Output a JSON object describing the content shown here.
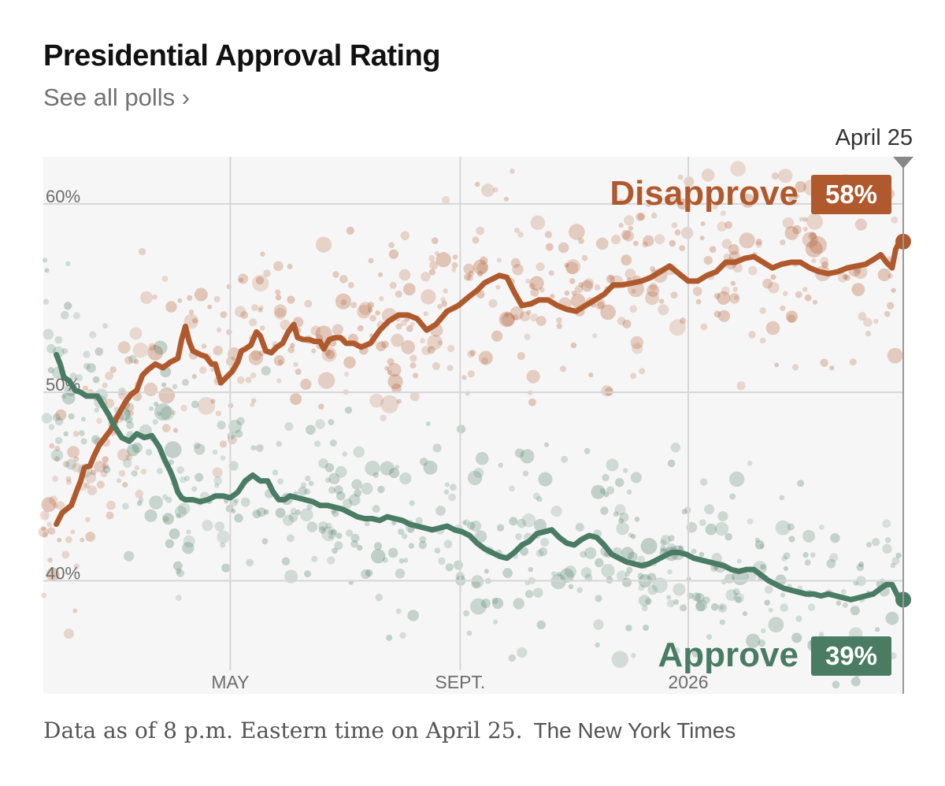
{
  "header": {
    "title": "Presidential Approval Rating",
    "see_all_link": "See all polls ›"
  },
  "footer": {
    "note": "Data as of 8 p.m. Eastern time on April 25.",
    "source": "The New York Times"
  },
  "colors": {
    "disapprove": "#b0592d",
    "approve": "#4a7c63",
    "plot_bg": "#f6f6f6",
    "grid": "#d6d6d6"
  },
  "chart_data": {
    "type": "line",
    "title": "Presidential Approval Rating",
    "ylabel": "",
    "xlabel": "",
    "ylim": [
      34,
      62.5
    ],
    "xlim": [
      0,
      460
    ],
    "y_ticks": [
      {
        "value": 60,
        "label": "60%"
      },
      {
        "value": 50,
        "label": "50%"
      },
      {
        "value": 40,
        "label": "40%"
      }
    ],
    "x_ticks": [
      {
        "x": 100,
        "label": "MAY"
      },
      {
        "x": 223,
        "label": "SEPT."
      },
      {
        "x": 345,
        "label": "2026"
      }
    ],
    "current_marker": {
      "x": 460,
      "label": "April 25"
    },
    "x_unit": "days since start of term (Jan. 20)",
    "series": [
      {
        "name": "Disapprove",
        "label": "Disapprove",
        "end_value_label": "58%",
        "color": "#b0592d",
        "points": [
          [
            7,
            43
          ],
          [
            10,
            43.6
          ],
          [
            15,
            44
          ],
          [
            18,
            44.8
          ],
          [
            20,
            45.3
          ],
          [
            22,
            46
          ],
          [
            25,
            46.1
          ],
          [
            27,
            46.6
          ],
          [
            30,
            47.2
          ],
          [
            33,
            47.6
          ],
          [
            36,
            48
          ],
          [
            40,
            48.8
          ],
          [
            44,
            49.5
          ],
          [
            47,
            49.9
          ],
          [
            50,
            50.1
          ],
          [
            53,
            50.9
          ],
          [
            56,
            51.2
          ],
          [
            60,
            51.5
          ],
          [
            64,
            51.3
          ],
          [
            68,
            51.6
          ],
          [
            72,
            51.8
          ],
          [
            74,
            52.8
          ],
          [
            76,
            53.5
          ],
          [
            78,
            52.7
          ],
          [
            80,
            52.2
          ],
          [
            84,
            52
          ],
          [
            87,
            51.9
          ],
          [
            90,
            51.5
          ],
          [
            92,
            51.5
          ],
          [
            95,
            50.5
          ],
          [
            98,
            50.8
          ],
          [
            101,
            51.1
          ],
          [
            104,
            51.6
          ],
          [
            106,
            52.2
          ],
          [
            108,
            52.3
          ],
          [
            111,
            52.5
          ],
          [
            114,
            53.2
          ],
          [
            116,
            53
          ],
          [
            119,
            52.2
          ],
          [
            122,
            52.1
          ],
          [
            125,
            52.4
          ],
          [
            128,
            52.6
          ],
          [
            131,
            53.2
          ],
          [
            134,
            53.6
          ],
          [
            136,
            52.9
          ],
          [
            139,
            52.8
          ],
          [
            142,
            52.8
          ],
          [
            145,
            52.7
          ],
          [
            148,
            52.7
          ],
          [
            150,
            52.3
          ],
          [
            153,
            52.8
          ],
          [
            156,
            52.9
          ],
          [
            159,
            52.9
          ],
          [
            162,
            52.6
          ],
          [
            166,
            52.6
          ],
          [
            170,
            52.4
          ],
          [
            175,
            52.6
          ],
          [
            180,
            53.3
          ],
          [
            185,
            53.8
          ],
          [
            190,
            54.1
          ],
          [
            195,
            54.1
          ],
          [
            200,
            53.9
          ],
          [
            205,
            53.3
          ],
          [
            210,
            53.6
          ],
          [
            216,
            54.3
          ],
          [
            222,
            54.6
          ],
          [
            228,
            55.1
          ],
          [
            232,
            55.4
          ],
          [
            236,
            55.8
          ],
          [
            240,
            56
          ],
          [
            244,
            56.2
          ],
          [
            248,
            56.1
          ],
          [
            252,
            55.3
          ],
          [
            256,
            54.6
          ],
          [
            261,
            54.7
          ],
          [
            265,
            54.9
          ],
          [
            270,
            54.9
          ],
          [
            275,
            54.6
          ],
          [
            280,
            54.4
          ],
          [
            285,
            54.3
          ],
          [
            290,
            54.6
          ],
          [
            295,
            54.9
          ],
          [
            300,
            55.2
          ],
          [
            305,
            55.7
          ],
          [
            310,
            55.7
          ],
          [
            315,
            55.8
          ],
          [
            320,
            55.9
          ],
          [
            325,
            56.1
          ],
          [
            330,
            56.4
          ],
          [
            335,
            56.7
          ],
          [
            340,
            56.3
          ],
          [
            345,
            55.9
          ],
          [
            350,
            55.9
          ],
          [
            355,
            56.2
          ],
          [
            360,
            56.4
          ],
          [
            365,
            56.9
          ],
          [
            370,
            56.9
          ],
          [
            375,
            57.1
          ],
          [
            380,
            57.2
          ],
          [
            385,
            56.9
          ],
          [
            390,
            56.6
          ],
          [
            395,
            56.8
          ],
          [
            400,
            56.9
          ],
          [
            405,
            56.9
          ],
          [
            410,
            56.6
          ],
          [
            415,
            56.4
          ],
          [
            420,
            56.3
          ],
          [
            425,
            56.4
          ],
          [
            430,
            56.6
          ],
          [
            435,
            56.7
          ],
          [
            440,
            56.8
          ],
          [
            445,
            57.1
          ],
          [
            448,
            57.3
          ],
          [
            451,
            56.9
          ],
          [
            454,
            56.6
          ],
          [
            456,
            57.6
          ],
          [
            458,
            58
          ],
          [
            460,
            58
          ]
        ]
      },
      {
        "name": "Approve",
        "label": "Approve",
        "end_value_label": "39%",
        "color": "#4a7c63",
        "points": [
          [
            7,
            52
          ],
          [
            9,
            51.5
          ],
          [
            11,
            50.8
          ],
          [
            14,
            50.6
          ],
          [
            17,
            50.1
          ],
          [
            20,
            50
          ],
          [
            23,
            49.8
          ],
          [
            26,
            49.8
          ],
          [
            29,
            49.8
          ],
          [
            32,
            49.3
          ],
          [
            35,
            48.8
          ],
          [
            38,
            48.2
          ],
          [
            42,
            47.6
          ],
          [
            46,
            47.4
          ],
          [
            50,
            47.8
          ],
          [
            54,
            47.6
          ],
          [
            58,
            47.7
          ],
          [
            62,
            47.1
          ],
          [
            65,
            46.4
          ],
          [
            68,
            45.8
          ],
          [
            70,
            45.3
          ],
          [
            72,
            44.7
          ],
          [
            74,
            44.4
          ],
          [
            76,
            44.3
          ],
          [
            80,
            44.3
          ],
          [
            84,
            44.2
          ],
          [
            88,
            44.3
          ],
          [
            92,
            44.5
          ],
          [
            96,
            44.5
          ],
          [
            100,
            44.4
          ],
          [
            104,
            44.7
          ],
          [
            108,
            45.3
          ],
          [
            112,
            45.6
          ],
          [
            116,
            45.3
          ],
          [
            120,
            45.3
          ],
          [
            123,
            44.7
          ],
          [
            126,
            44.3
          ],
          [
            129,
            44.3
          ],
          [
            132,
            44.5
          ],
          [
            136,
            44.4
          ],
          [
            140,
            44.3
          ],
          [
            144,
            44.2
          ],
          [
            148,
            44
          ],
          [
            152,
            44
          ],
          [
            156,
            43.9
          ],
          [
            160,
            43.8
          ],
          [
            164,
            43.6
          ],
          [
            168,
            43.4
          ],
          [
            172,
            43.3
          ],
          [
            176,
            43.3
          ],
          [
            180,
            43.2
          ],
          [
            184,
            43.4
          ],
          [
            188,
            43.3
          ],
          [
            192,
            43.2
          ],
          [
            196,
            43
          ],
          [
            200,
            42.9
          ],
          [
            204,
            42.8
          ],
          [
            208,
            42.7
          ],
          [
            212,
            42.8
          ],
          [
            216,
            42.9
          ],
          [
            220,
            42.7
          ],
          [
            224,
            42.6
          ],
          [
            228,
            42.4
          ],
          [
            232,
            42
          ],
          [
            236,
            41.7
          ],
          [
            240,
            41.5
          ],
          [
            244,
            41.3
          ],
          [
            248,
            41.2
          ],
          [
            252,
            41.5
          ],
          [
            256,
            41.9
          ],
          [
            260,
            42.1
          ],
          [
            264,
            42.5
          ],
          [
            268,
            42.6
          ],
          [
            272,
            42.7
          ],
          [
            276,
            42.3
          ],
          [
            280,
            42
          ],
          [
            284,
            41.9
          ],
          [
            288,
            42.2
          ],
          [
            292,
            42.4
          ],
          [
            296,
            42.3
          ],
          [
            300,
            41.9
          ],
          [
            304,
            41.4
          ],
          [
            308,
            41.2
          ],
          [
            312,
            41
          ],
          [
            316,
            40.9
          ],
          [
            320,
            40.8
          ],
          [
            324,
            40.9
          ],
          [
            328,
            41.1
          ],
          [
            332,
            41.3
          ],
          [
            336,
            41.5
          ],
          [
            340,
            41.5
          ],
          [
            344,
            41.4
          ],
          [
            348,
            41.2
          ],
          [
            352,
            41.1
          ],
          [
            356,
            41
          ],
          [
            360,
            40.9
          ],
          [
            364,
            40.8
          ],
          [
            368,
            40.6
          ],
          [
            372,
            40.5
          ],
          [
            376,
            40.6
          ],
          [
            380,
            40.6
          ],
          [
            384,
            40.3
          ],
          [
            388,
            40
          ],
          [
            392,
            39.8
          ],
          [
            396,
            39.6
          ],
          [
            400,
            39.5
          ],
          [
            404,
            39.4
          ],
          [
            408,
            39.3
          ],
          [
            412,
            39.3
          ],
          [
            416,
            39.2
          ],
          [
            420,
            39.3
          ],
          [
            424,
            39.2
          ],
          [
            428,
            39.1
          ],
          [
            432,
            39
          ],
          [
            436,
            39.1
          ],
          [
            440,
            39.2
          ],
          [
            444,
            39.3
          ],
          [
            448,
            39.6
          ],
          [
            451,
            39.8
          ],
          [
            454,
            39.8
          ],
          [
            457,
            39.2
          ],
          [
            460,
            39
          ]
        ]
      }
    ]
  }
}
